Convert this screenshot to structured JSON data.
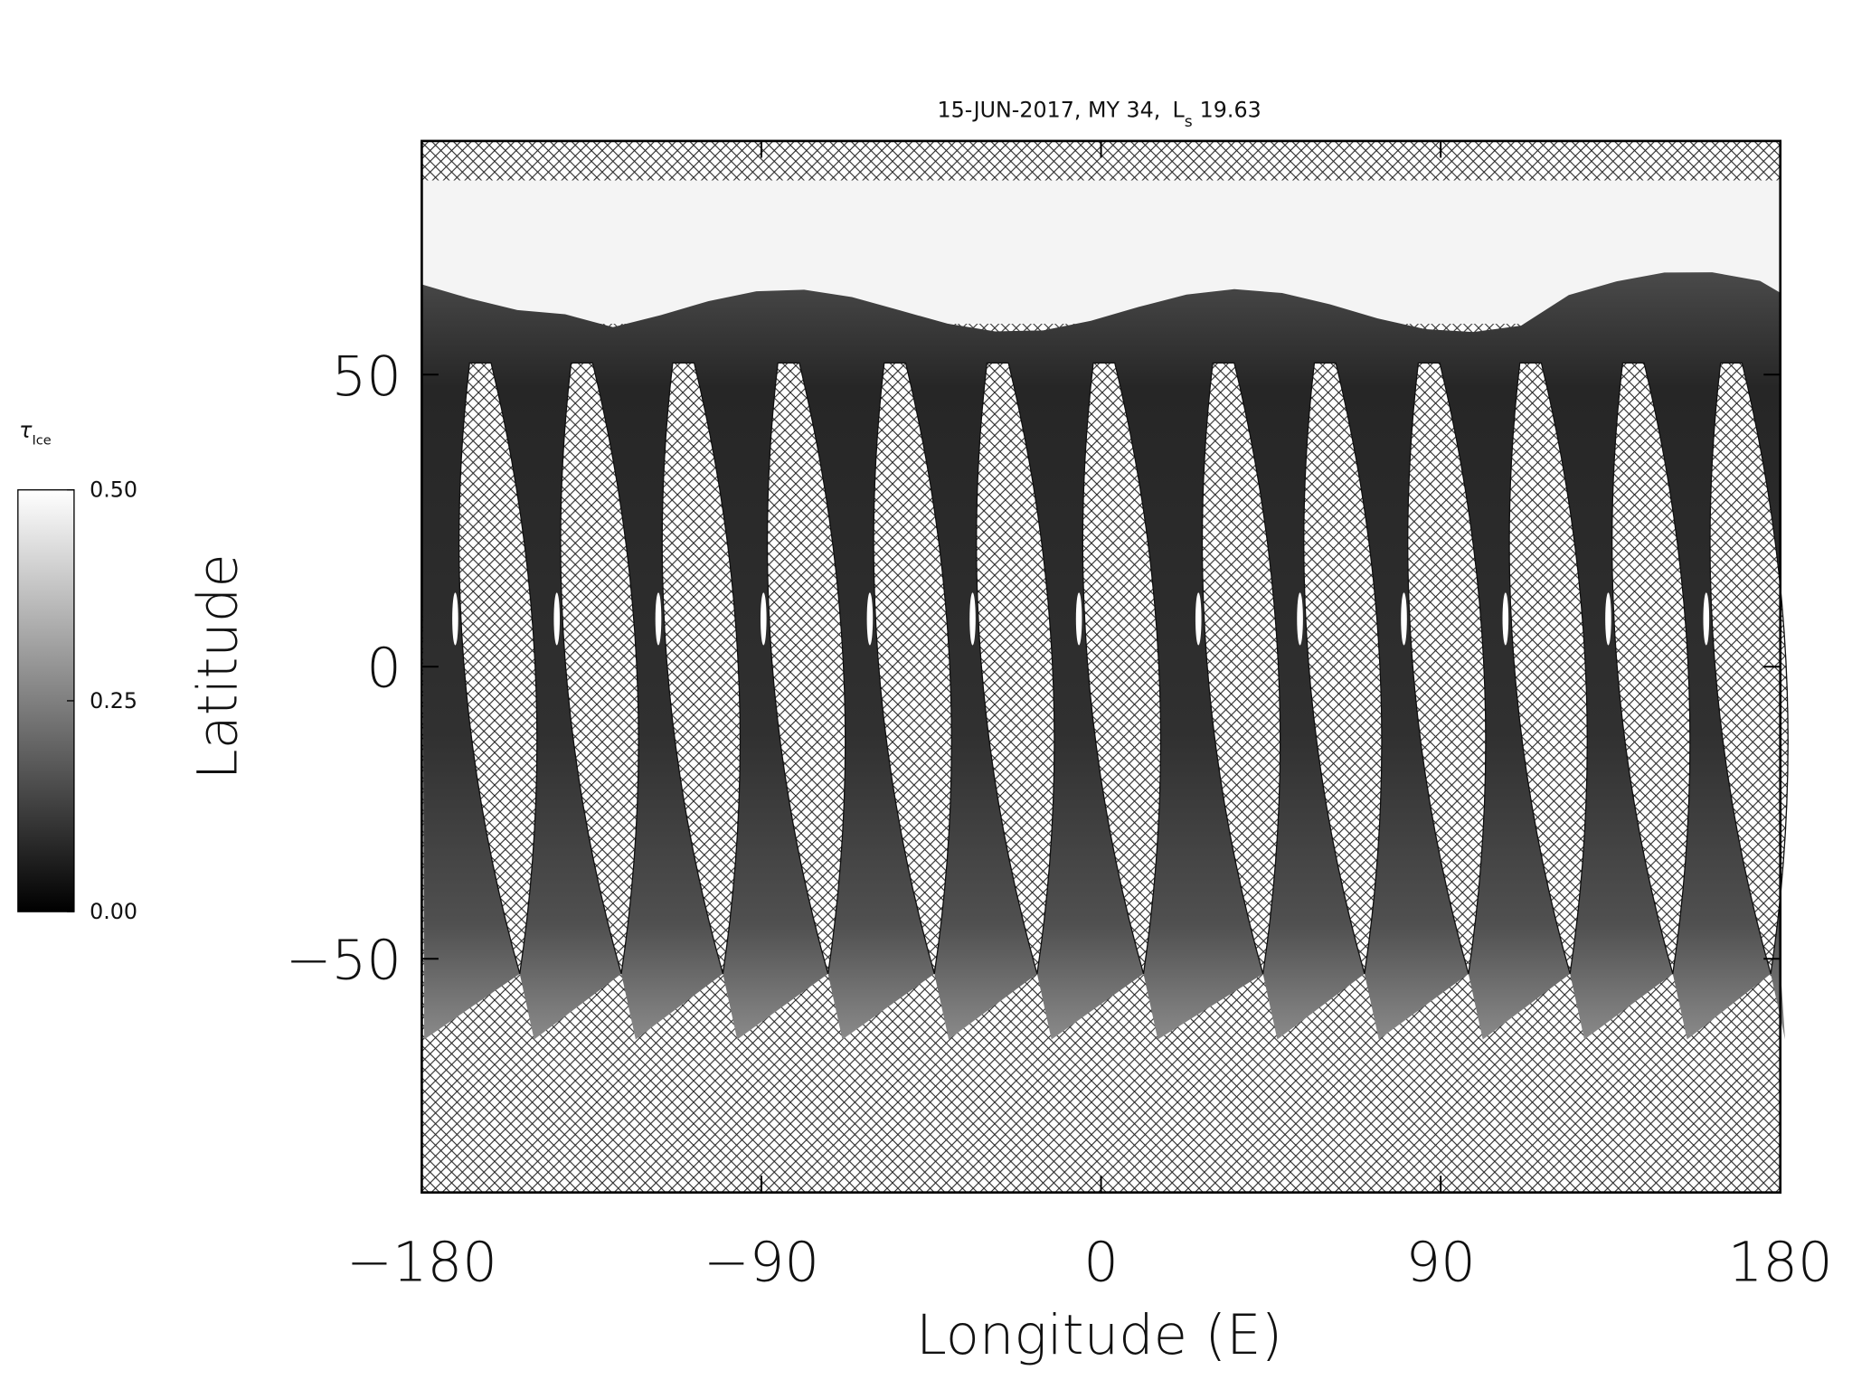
{
  "chart_data": {
    "type": "map",
    "title": "15-JUN-2017, MY 34,",
    "title_ls": "L",
    "title_ls_sub": "s",
    "title_ls_value": "19.63",
    "x_label": "Longitude (E)",
    "y_label": "Latitude",
    "xlim": [
      -180,
      180
    ],
    "ylim": [
      -90,
      90
    ],
    "xticks": [
      {
        "value": -180,
        "label": "−180"
      },
      {
        "value": -90,
        "label": "−90"
      },
      0,
      90,
      {
        "value": 180,
        "label": "180"
      }
    ],
    "yticks": [
      {
        "value": -50,
        "label": "−50"
      },
      0,
      50
    ],
    "colorbar": {
      "label": "τ",
      "label_sub": "Ice",
      "lim": [
        0,
        0.5
      ],
      "ticks": [
        {
          "value": 0,
          "label": "0.00"
        },
        {
          "value": 0.25,
          "label": "0.25"
        },
        {
          "value": 0.5,
          "label": "0.50"
        }
      ],
      "colors": [
        "#000000",
        "#ffffff"
      ]
    }
  }
}
